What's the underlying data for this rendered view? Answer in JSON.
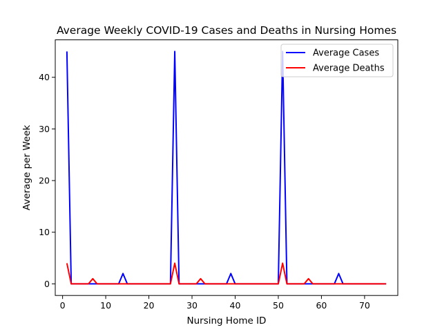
{
  "chart_data": {
    "type": "line",
    "title": "Average Weekly COVID-19 Cases and Deaths in Nursing Homes",
    "xlabel": "Nursing Home ID",
    "ylabel": "Average per Week",
    "xlim": [
      -1.7,
      77.7
    ],
    "ylim": [
      -2.25,
      47.25
    ],
    "x_ticks": [
      0,
      10,
      20,
      30,
      40,
      50,
      60,
      70
    ],
    "y_ticks": [
      0,
      10,
      20,
      30,
      40
    ],
    "grid": false,
    "legend_position": "top-right",
    "x": [
      1,
      2,
      3,
      4,
      5,
      6,
      7,
      8,
      9,
      10,
      11,
      12,
      13,
      14,
      15,
      16,
      17,
      18,
      19,
      20,
      21,
      22,
      23,
      24,
      25,
      26,
      27,
      28,
      29,
      30,
      31,
      32,
      33,
      34,
      35,
      36,
      37,
      38,
      39,
      40,
      41,
      42,
      43,
      44,
      45,
      46,
      47,
      48,
      49,
      50,
      51,
      52,
      53,
      54,
      55,
      56,
      57,
      58,
      59,
      60,
      61,
      62,
      63,
      64,
      65,
      66,
      67,
      68,
      69,
      70,
      71,
      72,
      73,
      74,
      75
    ],
    "series": [
      {
        "name": "Average Cases",
        "color": "#0000ff",
        "values": [
          45,
          0,
          0,
          0,
          0,
          0,
          0,
          0,
          0,
          0,
          0,
          0,
          0,
          2,
          0,
          0,
          0,
          0,
          0,
          0,
          0,
          0,
          0,
          0,
          0,
          45,
          0,
          0,
          0,
          0,
          0,
          0,
          0,
          0,
          0,
          0,
          0,
          0,
          2,
          0,
          0,
          0,
          0,
          0,
          0,
          0,
          0,
          0,
          0,
          0,
          45,
          0,
          0,
          0,
          0,
          0,
          0,
          0,
          0,
          0,
          0,
          0,
          0,
          2,
          0,
          0,
          0,
          0,
          0,
          0,
          0,
          0,
          0,
          0,
          0
        ]
      },
      {
        "name": "Average Deaths",
        "color": "#ff0000",
        "values": [
          4,
          0,
          0,
          0,
          0,
          0,
          1,
          0,
          0,
          0,
          0,
          0,
          0,
          0,
          0,
          0,
          0,
          0,
          0,
          0,
          0,
          0,
          0,
          0,
          0,
          4,
          0,
          0,
          0,
          0,
          0,
          1,
          0,
          0,
          0,
          0,
          0,
          0,
          0,
          0,
          0,
          0,
          0,
          0,
          0,
          0,
          0,
          0,
          0,
          0,
          4,
          0,
          0,
          0,
          0,
          0,
          1,
          0,
          0,
          0,
          0,
          0,
          0,
          0,
          0,
          0,
          0,
          0,
          0,
          0,
          0,
          0,
          0,
          0,
          0
        ]
      }
    ]
  }
}
